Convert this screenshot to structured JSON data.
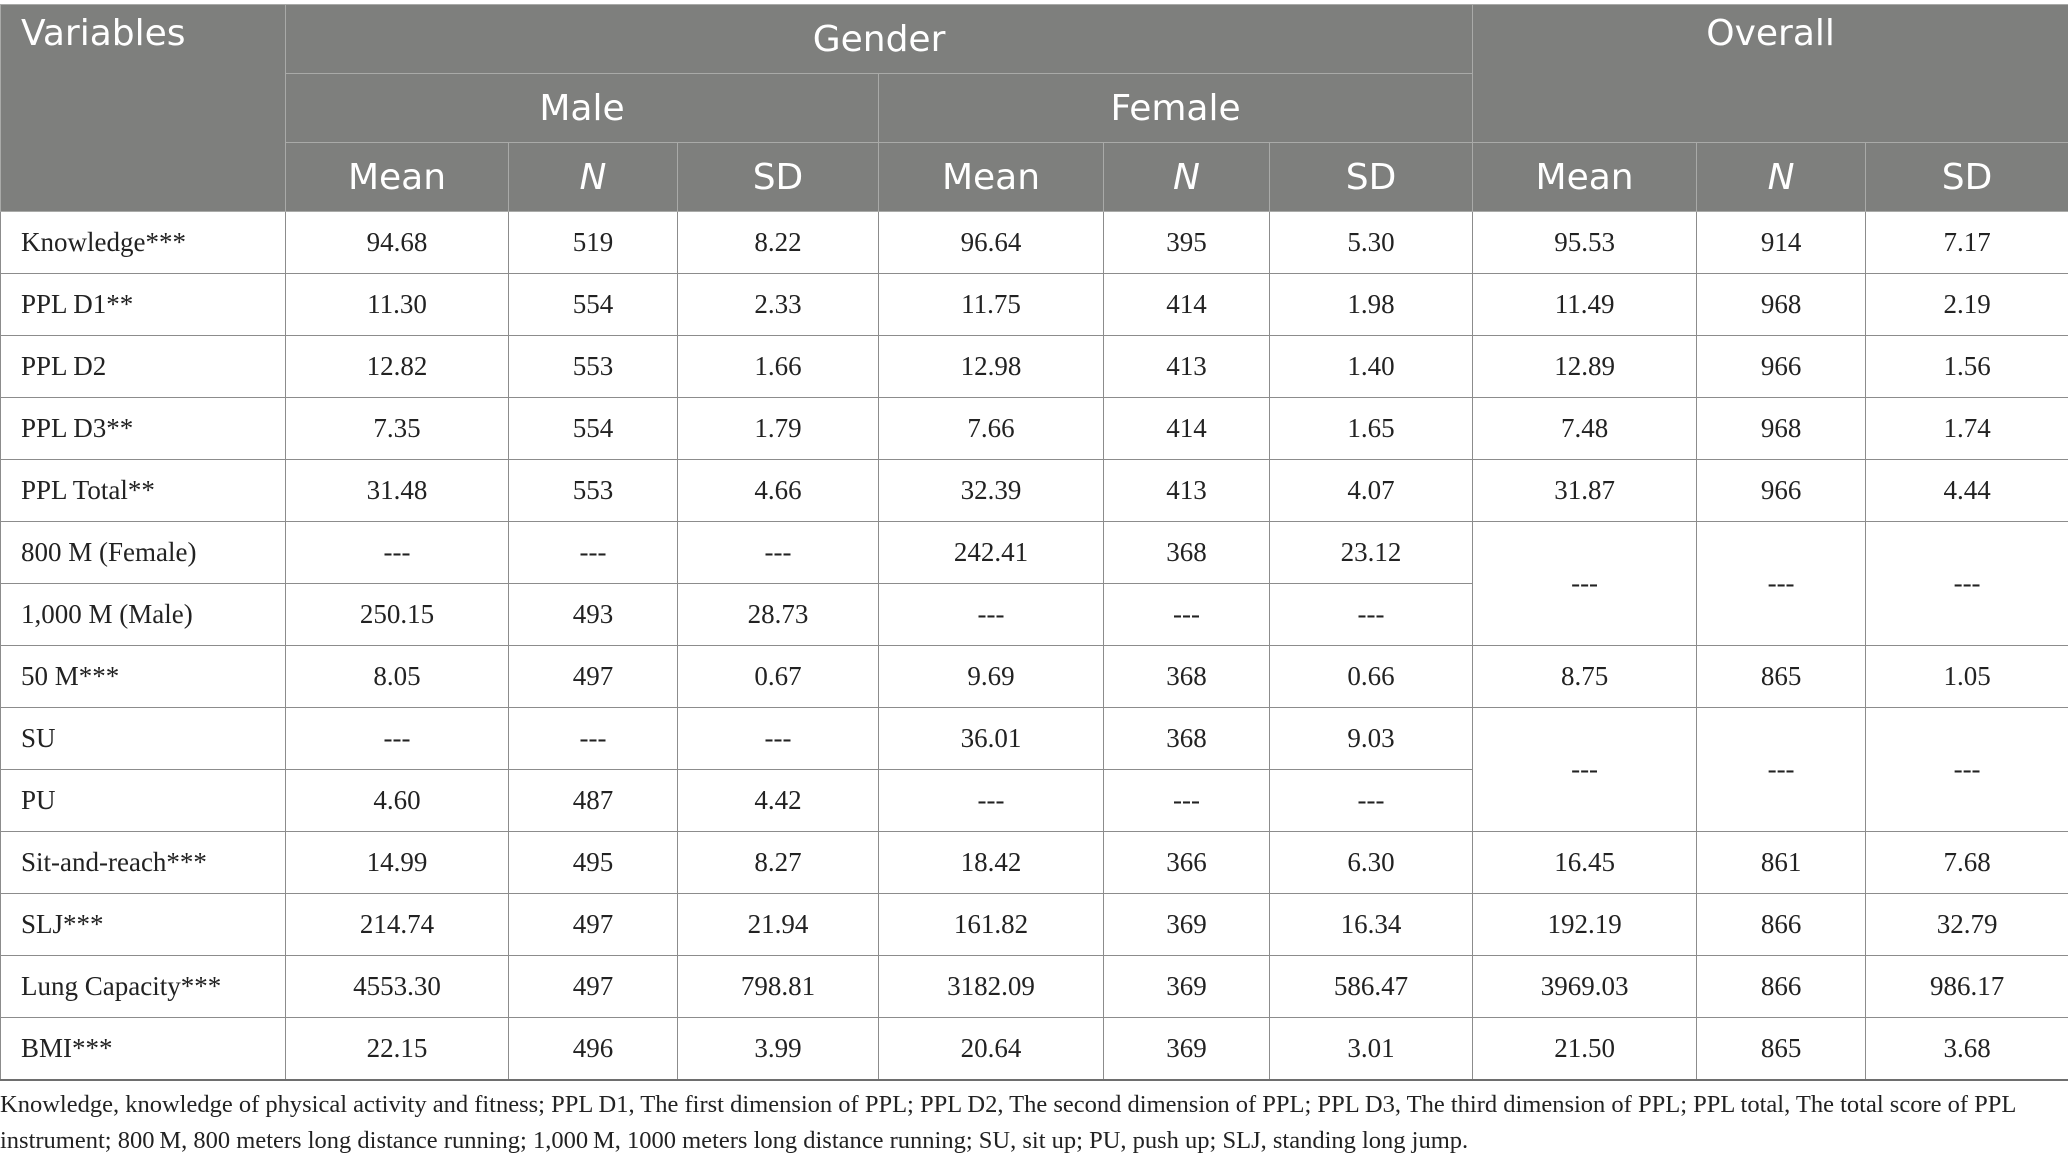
{
  "header": {
    "variables": "Variables",
    "gender": "Gender",
    "overall": "Overall",
    "male": "Male",
    "female": "Female",
    "mean": "Mean",
    "n": "N",
    "sd": "SD"
  },
  "rows": [
    {
      "label": "Knowledge***",
      "male": [
        "94.68",
        "519",
        "8.22"
      ],
      "female": [
        "96.64",
        "395",
        "5.30"
      ],
      "overall": [
        "95.53",
        "914",
        "7.17"
      ]
    },
    {
      "label": "PPL D1**",
      "male": [
        "11.30",
        "554",
        "2.33"
      ],
      "female": [
        "11.75",
        "414",
        "1.98"
      ],
      "overall": [
        "11.49",
        "968",
        "2.19"
      ]
    },
    {
      "label": "PPL D2",
      "male": [
        "12.82",
        "553",
        "1.66"
      ],
      "female": [
        "12.98",
        "413",
        "1.40"
      ],
      "overall": [
        "12.89",
        "966",
        "1.56"
      ]
    },
    {
      "label": "PPL D3**",
      "male": [
        "7.35",
        "554",
        "1.79"
      ],
      "female": [
        "7.66",
        "414",
        "1.65"
      ],
      "overall": [
        "7.48",
        "968",
        "1.74"
      ]
    },
    {
      "label": "PPL Total**",
      "male": [
        "31.48",
        "553",
        "4.66"
      ],
      "female": [
        "32.39",
        "413",
        "4.07"
      ],
      "overall": [
        "31.87",
        "966",
        "4.44"
      ]
    },
    {
      "label": "800 M (Female)",
      "male": [
        "---",
        "---",
        "---"
      ],
      "female": [
        "242.41",
        "368",
        "23.12"
      ],
      "overall": [
        "---",
        "---",
        "---"
      ]
    },
    {
      "label": "1,000 M (Male)",
      "male": [
        "250.15",
        "493",
        "28.73"
      ],
      "female": [
        "---",
        "---",
        "---"
      ]
    },
    {
      "label": "50 M***",
      "male": [
        "8.05",
        "497",
        "0.67"
      ],
      "female": [
        "9.69",
        "368",
        "0.66"
      ],
      "overall": [
        "8.75",
        "865",
        "1.05"
      ]
    },
    {
      "label": "SU",
      "male": [
        "---",
        "---",
        "---"
      ],
      "female": [
        "36.01",
        "368",
        "9.03"
      ],
      "overall": [
        "---",
        "---",
        "---"
      ]
    },
    {
      "label": "PU",
      "male": [
        "4.60",
        "487",
        "4.42"
      ],
      "female": [
        "---",
        "---",
        "---"
      ]
    },
    {
      "label": "Sit-and-reach***",
      "male": [
        "14.99",
        "495",
        "8.27"
      ],
      "female": [
        "18.42",
        "366",
        "6.30"
      ],
      "overall": [
        "16.45",
        "861",
        "7.68"
      ]
    },
    {
      "label": "SLJ***",
      "male": [
        "214.74",
        "497",
        "21.94"
      ],
      "female": [
        "161.82",
        "369",
        "16.34"
      ],
      "overall": [
        "192.19",
        "866",
        "32.79"
      ]
    },
    {
      "label": "Lung Capacity***",
      "male": [
        "4553.30",
        "497",
        "798.81"
      ],
      "female": [
        "3182.09",
        "369",
        "586.47"
      ],
      "overall": [
        "3969.03",
        "866",
        "986.17"
      ]
    },
    {
      "label": "BMI***",
      "male": [
        "22.15",
        "496",
        "3.99"
      ],
      "female": [
        "20.64",
        "369",
        "3.01"
      ],
      "overall": [
        "21.50",
        "865",
        "3.68"
      ]
    }
  ],
  "footnote": "Knowledge, knowledge of physical activity and fitness; PPL D1, The first dimension of PPL; PPL D2, The second dimension of PPL; PPL D3, The third dimension of PPL; PPL total, The total score of PPL instrument; 800 M, 800 meters long distance running; 1,000 M, 1000 meters long distance running; SU, sit up; PU, push up; SLJ, standing long jump."
}
